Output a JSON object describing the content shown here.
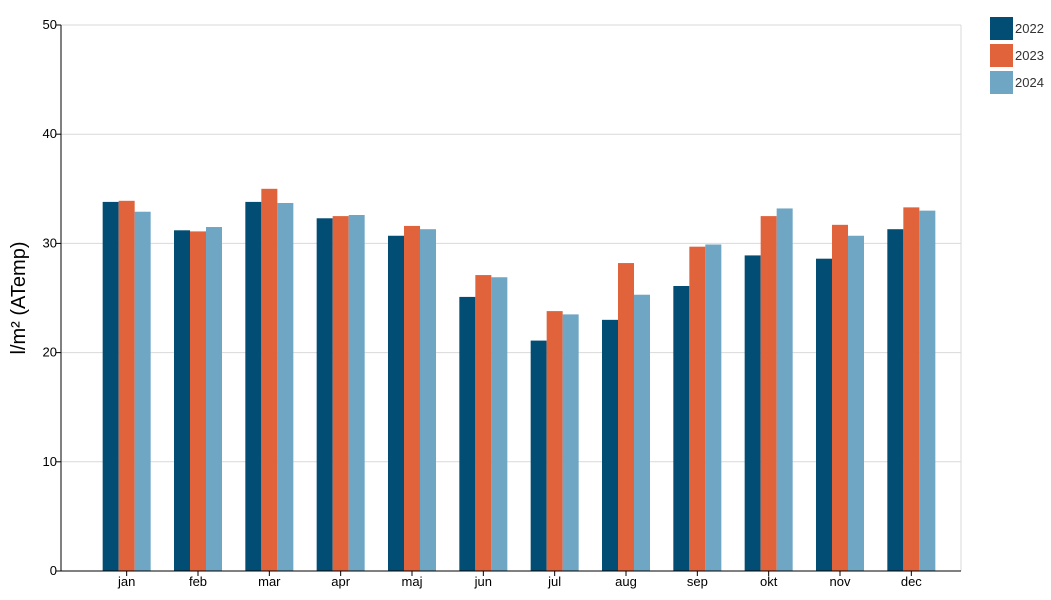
{
  "chart_data": {
    "type": "bar",
    "ylabel": "l/m² (ATemp)",
    "ylim": [
      0,
      50
    ],
    "yticks": [
      0,
      10,
      20,
      30,
      40,
      50
    ],
    "grid": true,
    "legend_position": "top-right",
    "categories": [
      "jan",
      "feb",
      "mar",
      "apr",
      "maj",
      "jun",
      "jul",
      "aug",
      "sep",
      "okt",
      "nov",
      "dec"
    ],
    "series": [
      {
        "name": "2022",
        "color": "#024d74",
        "values": [
          33.8,
          31.2,
          33.8,
          32.3,
          30.7,
          25.1,
          21.1,
          23.0,
          26.1,
          28.9,
          28.6,
          31.3
        ]
      },
      {
        "name": "2023",
        "color": "#e0633c",
        "values": [
          33.9,
          31.1,
          35.0,
          32.5,
          31.6,
          27.1,
          23.8,
          28.2,
          29.7,
          32.5,
          31.7,
          33.3
        ]
      },
      {
        "name": "2024",
        "color": "#6fa6c3",
        "values": [
          32.9,
          31.5,
          33.7,
          32.6,
          31.3,
          26.9,
          23.5,
          25.3,
          29.9,
          33.2,
          30.7,
          33.0
        ]
      }
    ]
  }
}
